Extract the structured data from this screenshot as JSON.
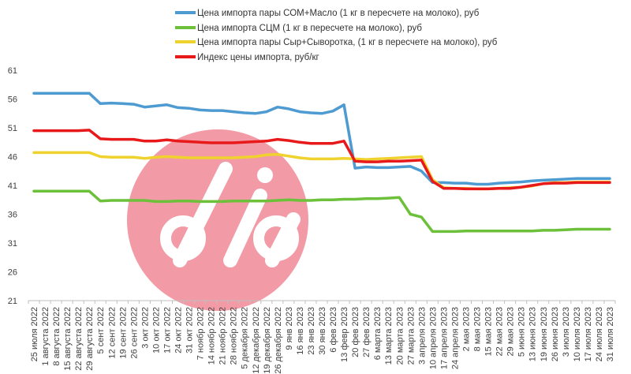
{
  "chart_data": {
    "type": "line",
    "title": "",
    "xlabel": "",
    "ylabel": "",
    "ylim": [
      21,
      61
    ],
    "yticks": [
      21,
      26,
      31,
      36,
      41,
      46,
      51,
      56,
      61
    ],
    "grid": false,
    "legend_position": "top",
    "watermark": "dia",
    "categories": [
      "25 июля 2022",
      "1 августа 2022",
      "8 августа 2022",
      "15 августа 2022",
      "22 августа 2022",
      "29 августа 2022",
      "5 сент 2022",
      "12 сент 2022",
      "19 сент 2022",
      "26 сент 2022",
      "3 окт 2022",
      "10 окт 2022",
      "17 окт 2022",
      "24 окт 2022",
      "31 окт 2022",
      "7 ноябр 2022",
      "14 ноябр 2022",
      "21 ноябр 2022",
      "28 ноябр 2022",
      "5 декабря 2022",
      "12 декабря 2022",
      "19 декабря 2022",
      "26 декабря 2022",
      "9 янв 2023",
      "16 янв 2023",
      "23 янв 2023",
      "30 янв 2023",
      "6 фев 2023",
      "13 февр 2023",
      "20 фев 2023",
      "27 фев 2023",
      "6 марта 2023",
      "13 марта 2023",
      "20 марта 2023",
      "27 марта 2023",
      "3 апреля 2023",
      "10 апреля 2023",
      "17 апреля 2023",
      "24 апреля 2023",
      "2 мая 2023",
      "8 мая 2023",
      "15 мая 2023",
      "22 мая 2023",
      "29 мая 2023",
      "5 июня 2023",
      "13 июня 2023",
      "19 июня 2023",
      "26 июня 2023",
      "3 июля 2023",
      "10 июля 2023",
      "17 июля 2023",
      "24 июля 2023",
      "31 июля 2023"
    ],
    "series": [
      {
        "name": "Цена импорта пары СОМ+Масло  (1 кг в пересчете на молоко), руб",
        "color": "#4e9bd1",
        "values": [
          57,
          57,
          57,
          57,
          57,
          57,
          55.2,
          55.3,
          55.2,
          55.1,
          54.6,
          54.8,
          55,
          54.5,
          54.4,
          54.1,
          54,
          54,
          53.8,
          53.6,
          53.5,
          53.8,
          54.6,
          54.3,
          53.8,
          53.6,
          53.5,
          53.9,
          55,
          44,
          44.2,
          44.1,
          44.1,
          44.2,
          44.3,
          43.5,
          41.5,
          41.5,
          41.4,
          41.4,
          41.2,
          41.2,
          41.4,
          41.5,
          41.6,
          41.8,
          41.9,
          42,
          42.1,
          42.2,
          42.2,
          42.2,
          42.2
        ]
      },
      {
        "name": "Цена импорта СЦМ (1 кг в пересчете на молоко), руб",
        "color": "#6cc03a",
        "values": [
          40,
          40,
          40,
          40,
          40,
          40,
          38.3,
          38.4,
          38.4,
          38.4,
          38.4,
          38.2,
          38.2,
          38.3,
          38.3,
          38.2,
          38.2,
          38.2,
          38.3,
          38.3,
          38.3,
          38.3,
          38.4,
          38.5,
          38.4,
          38.4,
          38.5,
          38.5,
          38.6,
          38.6,
          38.7,
          38.7,
          38.8,
          38.9,
          36,
          35.5,
          33,
          33,
          33,
          33.1,
          33.1,
          33.1,
          33.1,
          33.1,
          33.1,
          33.1,
          33.2,
          33.2,
          33.3,
          33.4,
          33.4,
          33.4,
          33.4
        ]
      },
      {
        "name": "Цена импорта пары Сыр+Сыворотка, (1 кг в пересчете на молоко), руб",
        "color": "#f0d22e",
        "values": [
          46.7,
          46.7,
          46.7,
          46.7,
          46.7,
          46.7,
          46,
          45.9,
          45.9,
          45.9,
          45.7,
          45.9,
          46,
          45.9,
          45.8,
          45.8,
          45.8,
          45.8,
          45.8,
          45.9,
          46,
          46.3,
          46.4,
          46.1,
          45.8,
          45.6,
          45.6,
          45.6,
          45.7,
          45.6,
          45.5,
          45.6,
          45.7,
          45.8,
          45.9,
          46,
          42,
          40.6,
          40.5,
          40.5,
          40.4,
          40.4,
          40.5,
          40.6,
          40.7,
          40.9,
          41.3,
          41.5,
          41.5,
          41.6,
          41.6,
          41.6,
          41.6
        ]
      },
      {
        "name": "Индекс цены импорта, руб/кг",
        "color": "#e8191b",
        "values": [
          50.5,
          50.5,
          50.5,
          50.5,
          50.5,
          50.6,
          49.1,
          49,
          49,
          49,
          48.7,
          48.7,
          48.9,
          48.7,
          48.6,
          48.5,
          48.4,
          48.4,
          48.4,
          48.5,
          48.6,
          48.7,
          49,
          48.8,
          48.5,
          48.3,
          48.3,
          48.3,
          48.7,
          45.2,
          45.1,
          45.1,
          45.2,
          45.2,
          45.3,
          45.4,
          41.7,
          40.5,
          40.5,
          40.4,
          40.4,
          40.4,
          40.5,
          40.5,
          40.7,
          41,
          41.3,
          41.4,
          41.4,
          41.5,
          41.5,
          41.5,
          41.5
        ]
      }
    ]
  }
}
